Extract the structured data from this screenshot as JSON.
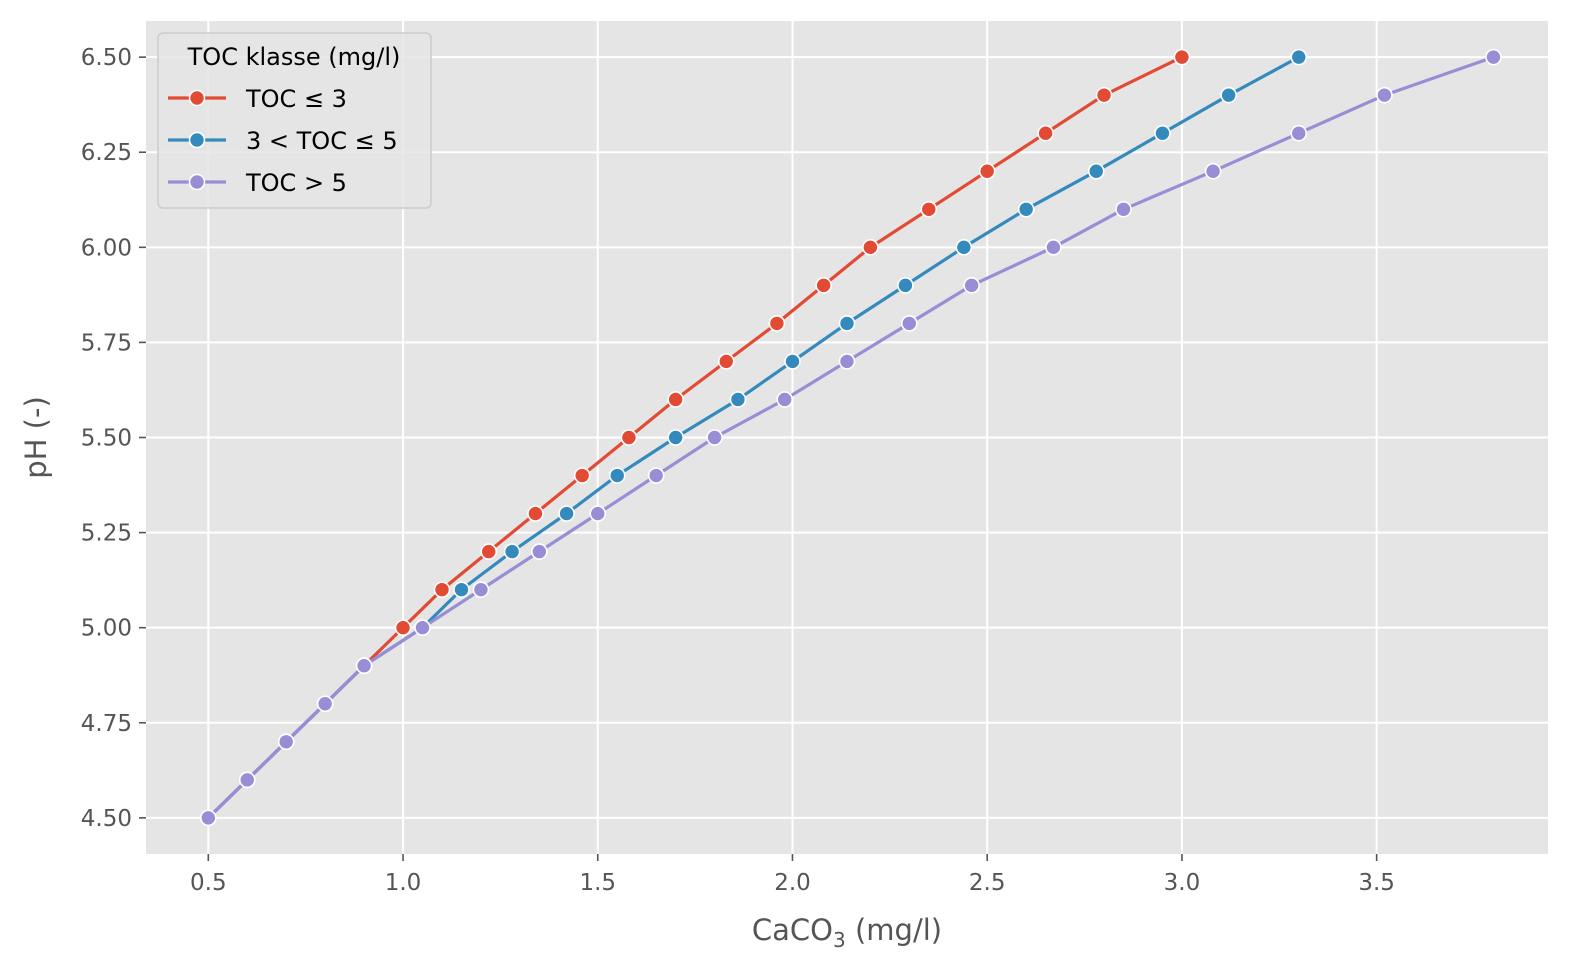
{
  "chart_data": {
    "type": "line",
    "title": "",
    "xlabel": "CaCO",
    "xlabel_sub": "3",
    "xlabel_suffix": " (mg/l)",
    "ylabel": "pH (-)",
    "xlim": [
      0.34,
      3.94
    ],
    "ylim": [
      4.405,
      6.595
    ],
    "xticks": [
      0.5,
      1.0,
      1.5,
      2.0,
      2.5,
      3.0,
      3.5
    ],
    "xtick_labels": [
      "0.5",
      "1.0",
      "1.5",
      "2.0",
      "2.5",
      "3.0",
      "3.5"
    ],
    "yticks": [
      4.5,
      4.75,
      5.0,
      5.25,
      5.5,
      5.75,
      6.0,
      6.25,
      6.5
    ],
    "ytick_labels": [
      "4.50",
      "4.75",
      "5.00",
      "5.25",
      "5.50",
      "5.75",
      "6.00",
      "6.25",
      "6.50"
    ],
    "grid": true,
    "legend": {
      "title": "TOC klasse (mg/l)",
      "placement": "top-left"
    },
    "series": [
      {
        "name": "TOC ≤ 3",
        "color": "#E24A33",
        "x": [
          0.5,
          0.6,
          0.7,
          0.8,
          0.9,
          1.0,
          1.1,
          1.22,
          1.34,
          1.46,
          1.58,
          1.7,
          1.83,
          1.96,
          2.08,
          2.2,
          2.35,
          2.5,
          2.65,
          2.8,
          3.0
        ],
        "y": [
          4.5,
          4.6,
          4.7,
          4.8,
          4.9,
          5.0,
          5.1,
          5.2,
          5.3,
          5.4,
          5.5,
          5.6,
          5.7,
          5.8,
          5.9,
          6.0,
          6.1,
          6.2,
          6.3,
          6.4,
          6.5
        ]
      },
      {
        "name": "3 < TOC ≤ 5",
        "color": "#348ABD",
        "x": [
          0.5,
          0.6,
          0.7,
          0.8,
          0.9,
          1.05,
          1.15,
          1.28,
          1.42,
          1.55,
          1.7,
          1.86,
          2.0,
          2.14,
          2.29,
          2.44,
          2.6,
          2.78,
          2.95,
          3.12,
          3.3
        ],
        "y": [
          4.5,
          4.6,
          4.7,
          4.8,
          4.9,
          5.0,
          5.1,
          5.2,
          5.3,
          5.4,
          5.5,
          5.6,
          5.7,
          5.8,
          5.9,
          6.0,
          6.1,
          6.2,
          6.3,
          6.4,
          6.5
        ]
      },
      {
        "name": "TOC > 5",
        "color": "#988ED5",
        "x": [
          0.5,
          0.6,
          0.7,
          0.8,
          0.9,
          1.05,
          1.2,
          1.35,
          1.5,
          1.65,
          1.8,
          1.98,
          2.14,
          2.3,
          2.46,
          2.67,
          2.85,
          3.08,
          3.3,
          3.52,
          3.8
        ],
        "y": [
          4.5,
          4.6,
          4.7,
          4.8,
          4.9,
          5.0,
          5.1,
          5.2,
          5.3,
          5.4,
          5.5,
          5.6,
          5.7,
          5.8,
          5.9,
          6.0,
          6.1,
          6.2,
          6.3,
          6.4,
          6.5
        ]
      }
    ]
  }
}
